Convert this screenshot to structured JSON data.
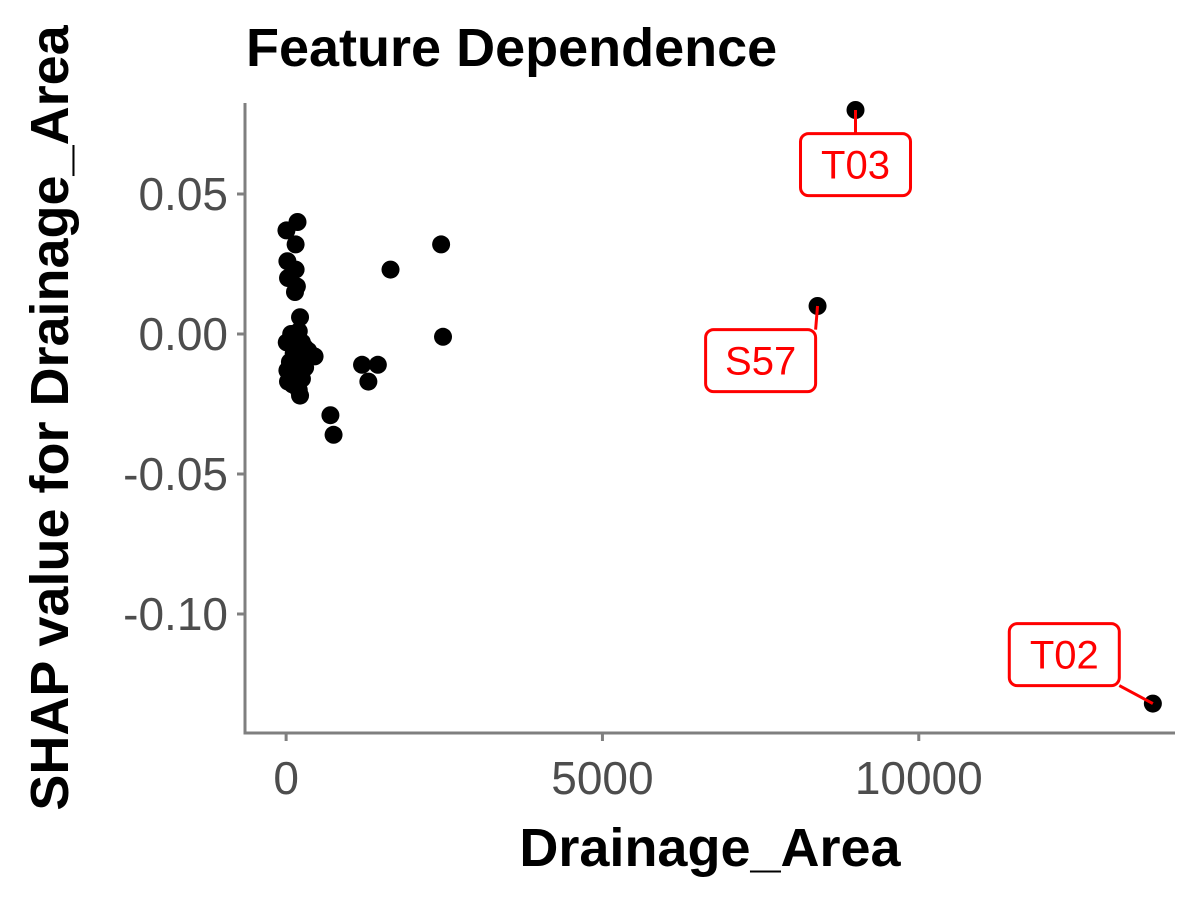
{
  "chart_data": {
    "type": "scatter",
    "title": "Feature Dependence",
    "xlabel": "Drainage_Area",
    "ylabel": "SHAP value for Drainage_Area",
    "xlim": [
      -650,
      14050
    ],
    "ylim": [
      -0.1425,
      0.0825
    ],
    "x_ticks": [
      {
        "value": 0,
        "label": "0"
      },
      {
        "value": 5000,
        "label": "5000"
      },
      {
        "value": 10000,
        "label": "10000"
      }
    ],
    "y_ticks": [
      {
        "value": 0.05,
        "label": "0.05"
      },
      {
        "value": 0.0,
        "label": "0.00"
      },
      {
        "value": -0.05,
        "label": "-0.05"
      },
      {
        "value": -0.1,
        "label": "-0.10"
      }
    ],
    "grid": false,
    "point_color": "#000000",
    "annotation_color": "#ff0000",
    "series": [
      {
        "points": [
          {
            "x": 5,
            "y": 0.037
          },
          {
            "x": 180,
            "y": 0.04
          },
          {
            "x": 150,
            "y": 0.032
          },
          {
            "x": 20,
            "y": 0.026
          },
          {
            "x": 150,
            "y": 0.023
          },
          {
            "x": 30,
            "y": 0.02
          },
          {
            "x": 170,
            "y": 0.017
          },
          {
            "x": 140,
            "y": 0.015
          },
          {
            "x": 220,
            "y": 0.006
          },
          {
            "x": 200,
            "y": 0.001
          },
          {
            "x": 80,
            "y": 0.0
          },
          {
            "x": 10,
            "y": -0.003
          },
          {
            "x": 250,
            "y": -0.003
          },
          {
            "x": 300,
            "y": -0.005
          },
          {
            "x": 120,
            "y": -0.007
          },
          {
            "x": 350,
            "y": -0.006
          },
          {
            "x": 450,
            "y": -0.008
          },
          {
            "x": 60,
            "y": -0.01
          },
          {
            "x": 200,
            "y": -0.011
          },
          {
            "x": 300,
            "y": -0.012
          },
          {
            "x": 20,
            "y": -0.013
          },
          {
            "x": 150,
            "y": -0.014
          },
          {
            "x": 250,
            "y": -0.016
          },
          {
            "x": 30,
            "y": -0.017
          },
          {
            "x": 100,
            "y": -0.018
          },
          {
            "x": 200,
            "y": -0.02
          },
          {
            "x": 220,
            "y": -0.022
          },
          {
            "x": 700,
            "y": -0.029
          },
          {
            "x": 750,
            "y": -0.036
          },
          {
            "x": 1200,
            "y": -0.011
          },
          {
            "x": 1450,
            "y": -0.011
          },
          {
            "x": 1300,
            "y": -0.017
          },
          {
            "x": 1650,
            "y": 0.023
          },
          {
            "x": 2450,
            "y": 0.032
          },
          {
            "x": 2480,
            "y": -0.001
          },
          {
            "x": 8400,
            "y": 0.01
          },
          {
            "x": 9000,
            "y": 0.08
          },
          {
            "x": 13700,
            "y": -0.132
          }
        ]
      }
    ],
    "annotations": [
      {
        "label": "T03",
        "x": 9000,
        "y": 0.08,
        "box_x": 9000,
        "box_y": 0.0605
      },
      {
        "label": "S57",
        "x": 8400,
        "y": 0.01,
        "box_x": 7500,
        "box_y": -0.0095
      },
      {
        "label": "T02",
        "x": 13700,
        "y": -0.132,
        "box_x": 12300,
        "box_y": -0.1145
      }
    ]
  }
}
